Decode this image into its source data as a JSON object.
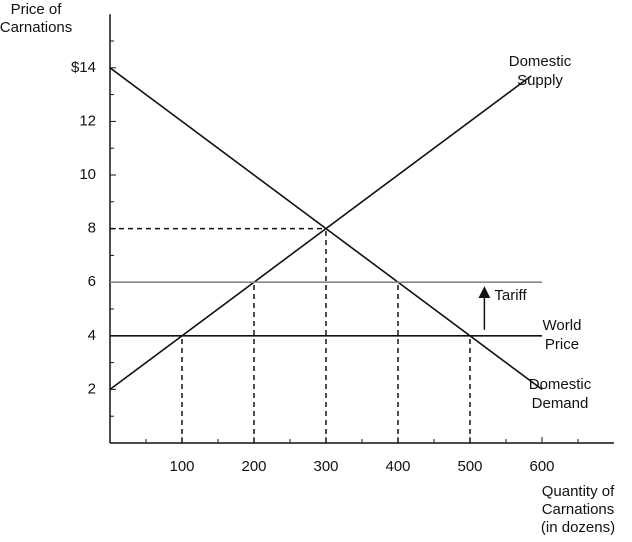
{
  "chart_data": {
    "type": "line",
    "ylabel": [
      "Price of",
      "Carnations"
    ],
    "xlabel": [
      "Quantity of",
      "Carnations",
      "(in dozens)"
    ],
    "xlim": [
      0,
      700
    ],
    "ylim": [
      0,
      16
    ],
    "xticks": [
      100,
      200,
      300,
      400,
      500,
      600
    ],
    "xminor": [
      50,
      150,
      250,
      350,
      450,
      550,
      650
    ],
    "yticks": [
      2,
      4,
      6,
      8,
      10,
      12,
      {
        "value": 14,
        "label": "$14"
      }
    ],
    "yminor": [
      1,
      3,
      5,
      7,
      9,
      11,
      13,
      15
    ],
    "series": [
      {
        "name": [
          "Domestic",
          "Supply"
        ],
        "color": "#111111",
        "x": [
          0,
          585
        ],
        "values": [
          2,
          13.7
        ]
      },
      {
        "name": [
          "World",
          "Price"
        ],
        "color": "#111111",
        "x": [
          0,
          600
        ],
        "values": [
          4,
          4
        ]
      },
      {
        "name": [
          "Domestic",
          "Demand"
        ],
        "color": "#111111",
        "x": [
          0,
          600
        ],
        "values": [
          14,
          2
        ]
      },
      {
        "color": "#888888",
        "x": [
          0,
          600
        ],
        "values": [
          6,
          6
        ]
      }
    ],
    "guides": [
      {
        "x": [
          0,
          300
        ],
        "values": [
          8,
          8
        ]
      },
      {
        "x": [
          100,
          100
        ],
        "values": [
          0,
          4
        ]
      },
      {
        "x": [
          200,
          200
        ],
        "values": [
          0,
          6
        ]
      },
      {
        "x": [
          300,
          300
        ],
        "values": [
          0,
          8
        ]
      },
      {
        "x": [
          400,
          400
        ],
        "values": [
          0,
          6
        ]
      },
      {
        "x": [
          500,
          500
        ],
        "values": [
          0,
          4
        ]
      }
    ],
    "annotation": {
      "text": "Tariff",
      "x": 520,
      "from": 4,
      "to": 6
    }
  }
}
